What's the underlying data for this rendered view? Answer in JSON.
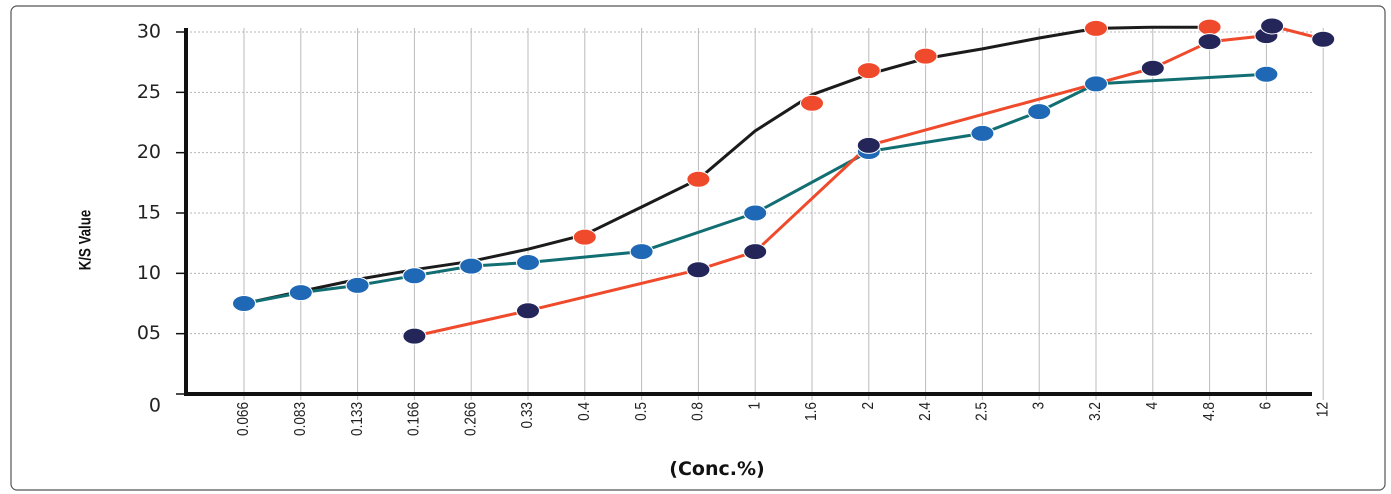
{
  "chart_data": {
    "type": "line",
    "title": "",
    "ylabel": "K/S Value",
    "xlabel": "(Conc.%)",
    "ylim": [
      0,
      30
    ],
    "y_ticks": [
      "0",
      "05",
      "10",
      "15",
      "20",
      "25",
      "30"
    ],
    "categories": [
      "0.066",
      "0.083",
      "0.133",
      "0.166",
      "0.266",
      "0.33",
      "0.4",
      "0.5",
      "0.8",
      "1",
      "1.6",
      "2",
      "2.4",
      "2.5",
      "3",
      "3.2",
      "4",
      "4.8",
      "6",
      "12"
    ],
    "grid": true,
    "series": [
      {
        "color": "#1b1b1b",
        "line_only": [
          {
            "x": 0.066,
            "y": 7.5
          },
          {
            "x": 0.083,
            "y": 8.5
          },
          {
            "x": 0.133,
            "y": 9.5
          },
          {
            "x": 0.166,
            "y": 10.3
          },
          {
            "x": 0.266,
            "y": 11.0
          },
          {
            "x": 0.33,
            "y": 12.0
          },
          {
            "x": 0.4,
            "y": 13.2
          },
          {
            "x": 0.5,
            "y": 15.5
          },
          {
            "x": 0.8,
            "y": 17.8
          },
          {
            "x": 1,
            "y": 21.8
          },
          {
            "x": 1.6,
            "y": 24.8
          },
          {
            "x": 2,
            "y": 26.5
          },
          {
            "x": 2.4,
            "y": 27.8
          },
          {
            "x": 2.5,
            "y": 28.6
          },
          {
            "x": 3,
            "y": 29.5
          },
          {
            "x": 3.2,
            "y": 30.3
          },
          {
            "x": 4,
            "y": 30.4
          },
          {
            "x": 4.8,
            "y": 30.4
          }
        ],
        "points": [
          {
            "x": 0.066,
            "y": 7.5
          },
          {
            "x": 0.133,
            "y": 9.0
          },
          {
            "x": 0.266,
            "y": 10.6
          },
          {
            "x": 0.4,
            "y": 13.0
          },
          {
            "x": 0.8,
            "y": 17.8
          },
          {
            "x": 1.6,
            "y": 24.1
          },
          {
            "x": 2,
            "y": 26.8
          },
          {
            "x": 2.4,
            "y": 28.0
          },
          {
            "x": 3.2,
            "y": 30.3
          },
          {
            "x": 4.8,
            "y": 30.4
          }
        ],
        "marker_color": "#ef4a2b"
      },
      {
        "color": "#116e72",
        "points": [
          {
            "x": 0.066,
            "y": 7.5
          },
          {
            "x": 0.083,
            "y": 8.4
          },
          {
            "x": 0.133,
            "y": 9.0
          },
          {
            "x": 0.166,
            "y": 9.8
          },
          {
            "x": 0.266,
            "y": 10.6
          },
          {
            "x": 0.33,
            "y": 10.9
          },
          {
            "x": 0.5,
            "y": 11.8
          },
          {
            "x": 1,
            "y": 15.0
          },
          {
            "x": 2,
            "y": 20.1
          },
          {
            "x": 2.5,
            "y": 21.6
          },
          {
            "x": 3,
            "y": 23.4
          },
          {
            "x": 3.2,
            "y": 25.7
          },
          {
            "x": 6,
            "y": 26.5
          }
        ],
        "marker_color": "#1f68b5"
      },
      {
        "color": "#ef4a2b",
        "points": [
          {
            "x": 0.166,
            "y": 4.8
          },
          {
            "x": 0.33,
            "y": 6.9
          },
          {
            "x": 0.8,
            "y": 10.3
          },
          {
            "x": 1,
            "y": 11.8
          },
          {
            "x": 2,
            "y": 20.6
          },
          {
            "x": 4,
            "y": 27.0
          },
          {
            "x": 4.8,
            "y": 29.2
          },
          {
            "x": 6,
            "y": 29.7
          },
          {
            "x": 6.6,
            "y": 30.5
          },
          {
            "x": 12,
            "y": 29.4
          }
        ],
        "marker_color": "#24265a"
      }
    ]
  }
}
